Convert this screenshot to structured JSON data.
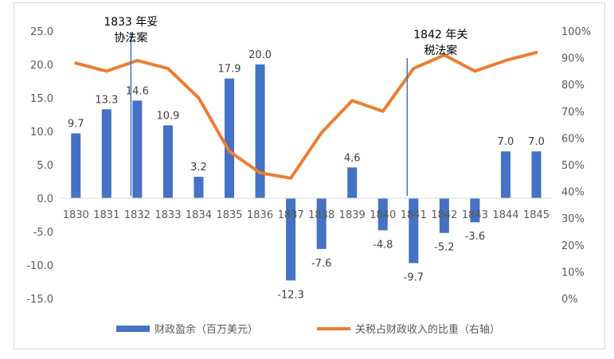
{
  "chart_data": {
    "type": "bar+line",
    "categories": [
      "1830",
      "1831",
      "1832",
      "1833",
      "1834",
      "1835",
      "1836",
      "1837",
      "1838",
      "1839",
      "1840",
      "1841",
      "1842",
      "1843",
      "1844",
      "1845"
    ],
    "series": [
      {
        "name": "财政盈余（百万美元）",
        "type": "bar",
        "axis": "left",
        "color": "#4472C4",
        "values": [
          9.7,
          13.3,
          14.6,
          10.9,
          3.2,
          17.9,
          20.0,
          -12.3,
          -7.6,
          4.6,
          -4.8,
          -9.7,
          -5.2,
          -3.6,
          7.0,
          7.0
        ],
        "labels": [
          "9.7",
          "13.3",
          "14.6",
          "10.9",
          "3.2",
          "17.9",
          "20.0",
          "-12.3",
          "-7.6",
          "4.6",
          "-4.8",
          "-9.7",
          "-5.2",
          "-3.6",
          "7.0",
          "7.0"
        ]
      },
      {
        "name": "关税占财政收入的比重（右轴）",
        "type": "line",
        "axis": "right",
        "color": "#ED7D31",
        "values": [
          88,
          85,
          89,
          86,
          75,
          55,
          47,
          45,
          62,
          74,
          70,
          86,
          91,
          85,
          89,
          92
        ]
      }
    ],
    "yleft": {
      "lim": [
        -15,
        25
      ],
      "ticks": [
        "-15.0",
        "-10.0",
        "-5.0",
        "0.0",
        "5.0",
        "10.0",
        "15.0",
        "20.0",
        "25.0"
      ]
    },
    "yright": {
      "lim": [
        0,
        100
      ],
      "ticks": [
        "0%",
        "10%",
        "20%",
        "30%",
        "40%",
        "50%",
        "60%",
        "70%",
        "80%",
        "90%",
        "100%"
      ]
    },
    "annotations": [
      {
        "year": "1832",
        "lines": [
          "1833 年妥",
          "协法案"
        ]
      },
      {
        "year": "1841",
        "lines": [
          "1842 年关",
          "税法案"
        ]
      }
    ],
    "annotation_line_color": "#4472C4",
    "legend_position": "bottom",
    "grid": false
  }
}
